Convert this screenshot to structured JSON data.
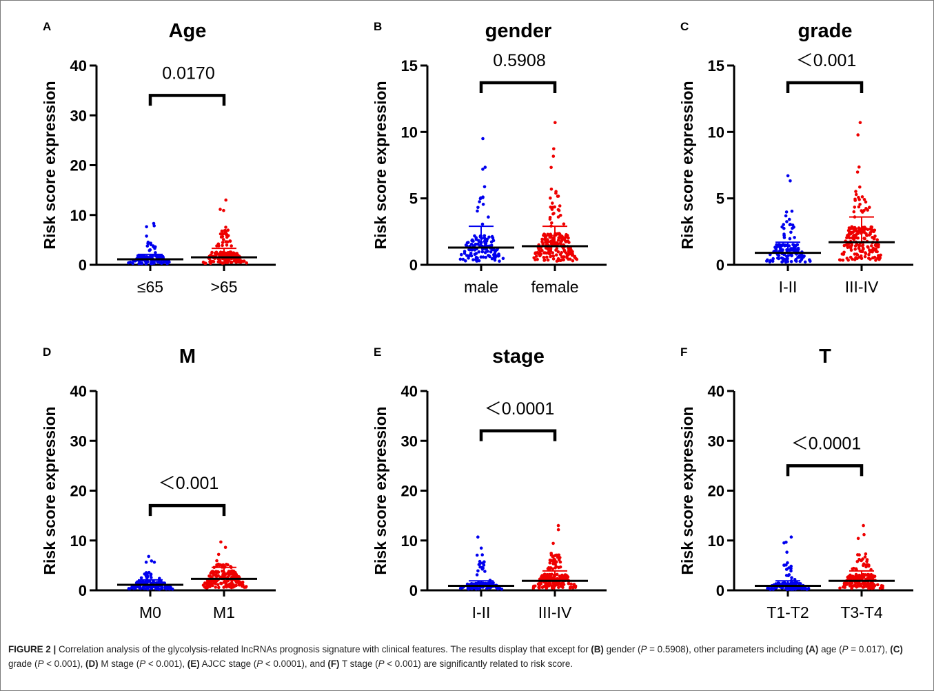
{
  "colors": {
    "group1": "#0000ee",
    "group2": "#ee0000",
    "axis": "#000000"
  },
  "caption": {
    "label": "FIGURE 2 |",
    "parts": [
      {
        "t": " Correlation analysis of the glycolysis-related lncRNAs prognosis signature with clinical features. The results display that except for ",
        "b": false
      },
      {
        "t": "(B)",
        "b": true
      },
      {
        "t": " gender (",
        "b": false
      },
      {
        "t": "P",
        "i": true
      },
      {
        "t": " = 0.5908), other parameters including ",
        "b": false
      },
      {
        "t": "(A)",
        "b": true
      },
      {
        "t": " age (",
        "b": false
      },
      {
        "t": "P",
        "i": true
      },
      {
        "t": " = 0.017), ",
        "b": false
      },
      {
        "t": "(C)",
        "b": true
      },
      {
        "t": " grade (",
        "b": false
      },
      {
        "t": "P",
        "i": true
      },
      {
        "t": " < 0.001), ",
        "b": false
      },
      {
        "t": "(D)",
        "b": true
      },
      {
        "t": " M stage (",
        "b": false
      },
      {
        "t": "P",
        "i": true
      },
      {
        "t": " < 0.001), ",
        "b": false
      },
      {
        "t": "(E)",
        "b": true
      },
      {
        "t": " AJCC stage (",
        "b": false
      },
      {
        "t": "P",
        "i": true
      },
      {
        "t": " < 0.0001), and ",
        "b": false
      },
      {
        "t": "(F)",
        "b": true
      },
      {
        "t": " T stage (",
        "b": false
      },
      {
        "t": "P",
        "i": true
      },
      {
        "t": " < 0.001) are significantly related to risk score.",
        "b": false
      }
    ]
  },
  "chart_data": [
    {
      "panel": "A",
      "type": "scatter",
      "title": "Age",
      "ylabel": "Risk score expression",
      "ylim": [
        0,
        40
      ],
      "yticks": [
        0,
        10,
        20,
        30,
        40
      ],
      "categories": [
        "≤65",
        ">65"
      ],
      "pvalue": "0.0170",
      "bracket_y": 34,
      "groups": [
        {
          "mean": 1.1,
          "sd_upper": 2.1,
          "max": 8.3
        },
        {
          "mean": 1.5,
          "sd_upper": 3.3,
          "max": 13.0
        }
      ]
    },
    {
      "panel": "B",
      "type": "scatter",
      "title": "gender",
      "ylabel": "Risk score expression",
      "ylim": [
        0,
        15
      ],
      "yticks": [
        0,
        5,
        10,
        15
      ],
      "categories": [
        "male",
        "female"
      ],
      "pvalue": "0.5908",
      "bracket_y": 13.7,
      "groups": [
        {
          "mean": 1.3,
          "sd_upper": 2.9,
          "max": 9.5
        },
        {
          "mean": 1.4,
          "sd_upper": 2.9,
          "max": 10.7
        }
      ]
    },
    {
      "panel": "C",
      "type": "scatter",
      "title": "grade",
      "ylabel": "Risk score expression",
      "ylim": [
        0,
        15
      ],
      "yticks": [
        0,
        5,
        10,
        15
      ],
      "categories": [
        "I-II",
        "III-IV"
      ],
      "pvalue": "＜0.001",
      "bracket_y": 13.7,
      "groups": [
        {
          "mean": 0.9,
          "sd_upper": 1.7,
          "max": 6.7
        },
        {
          "mean": 1.7,
          "sd_upper": 3.6,
          "max": 10.7
        }
      ]
    },
    {
      "panel": "D",
      "type": "scatter",
      "title": "M",
      "ylabel": "Risk score expression",
      "ylim": [
        0,
        40
      ],
      "yticks": [
        0,
        10,
        20,
        30,
        40
      ],
      "categories": [
        "M0",
        "M1"
      ],
      "pvalue": "＜0.001",
      "bracket_y": 17,
      "groups": [
        {
          "mean": 1.1,
          "sd_upper": 2.1,
          "max": 6.8
        },
        {
          "mean": 2.3,
          "sd_upper": 4.6,
          "max": 9.7
        }
      ]
    },
    {
      "panel": "E",
      "type": "scatter",
      "title": "stage",
      "ylabel": "Risk score expression",
      "ylim": [
        0,
        40
      ],
      "yticks": [
        0,
        10,
        20,
        30,
        40
      ],
      "categories": [
        "I-II",
        "III-IV"
      ],
      "pvalue": "＜0.0001",
      "bracket_y": 32,
      "groups": [
        {
          "mean": 0.9,
          "sd_upper": 1.9,
          "max": 10.7
        },
        {
          "mean": 1.9,
          "sd_upper": 3.9,
          "max": 13.0
        }
      ]
    },
    {
      "panel": "F",
      "type": "scatter",
      "title": "T",
      "ylabel": "Risk score expression",
      "ylim": [
        0,
        40
      ],
      "yticks": [
        0,
        10,
        20,
        30,
        40
      ],
      "categories": [
        "T1-T2",
        "T3-T4"
      ],
      "pvalue": "＜0.0001",
      "bracket_y": 25,
      "groups": [
        {
          "mean": 0.9,
          "sd_upper": 1.9,
          "max": 10.7
        },
        {
          "mean": 1.9,
          "sd_upper": 3.9,
          "max": 13.0
        }
      ]
    }
  ]
}
